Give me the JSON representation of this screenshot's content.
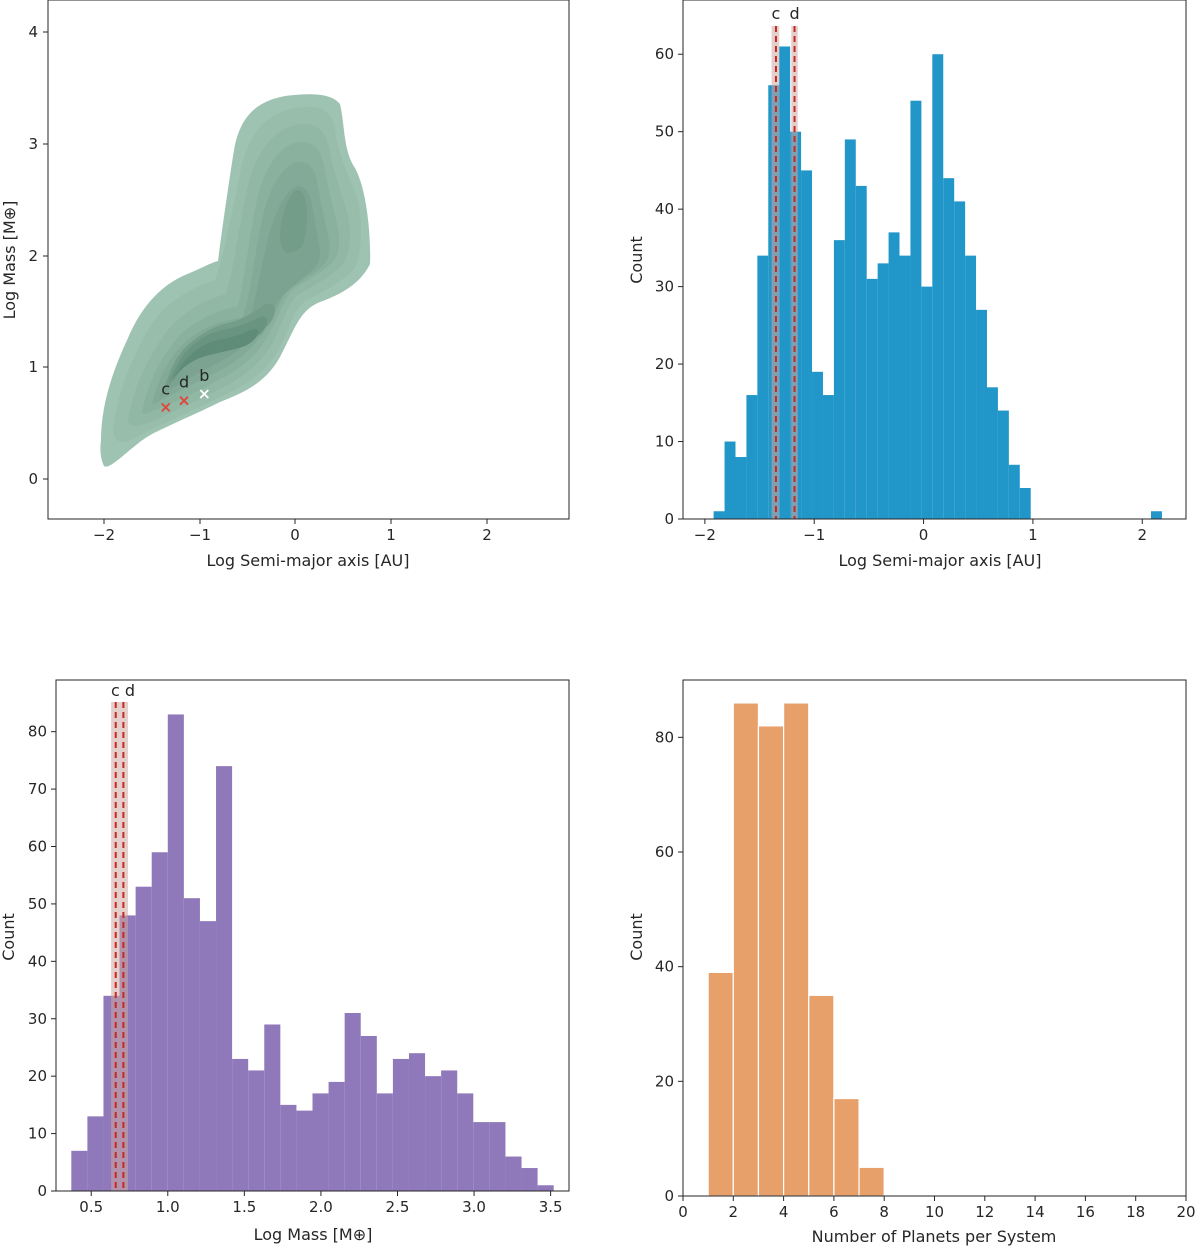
{
  "chart_data": [
    {
      "type": "kde",
      "xlabel": "Log Semi-major axis [AU]",
      "ylabel": "Log Mass [M⊕]",
      "xlim": [
        -2.6,
        2.8
      ],
      "ylim": [
        -0.35,
        4.3
      ],
      "xticks": [
        "−2",
        "−1",
        "0",
        "1",
        "2"
      ],
      "yticks": [
        "0",
        "1",
        "2",
        "3",
        "4"
      ],
      "fill_color": "#9fc3b2",
      "peak_color": "#5f8c79",
      "density_peaks": [
        {
          "x": -0.95,
          "y": 0.95,
          "level": 9
        },
        {
          "x": -0.1,
          "y": 2.6,
          "level": 6
        }
      ],
      "markers": [
        {
          "label": "c",
          "x": -1.38,
          "y": 0.65,
          "color": "#e0443a"
        },
        {
          "label": "d",
          "x": -1.19,
          "y": 0.71,
          "color": "#e0443a"
        },
        {
          "label": "b",
          "x": -0.98,
          "y": 0.77,
          "color": "#ffffff"
        }
      ]
    },
    {
      "type": "bar",
      "xlabel": "Log Semi-major axis [AU]",
      "ylabel": "Count",
      "xlim": [
        -2.2,
        2.4
      ],
      "ylim": [
        0,
        67
      ],
      "xticks": [
        "−2",
        "−1",
        "0",
        "1",
        "2"
      ],
      "yticks": [
        "0",
        "10",
        "20",
        "30",
        "40",
        "50",
        "60"
      ],
      "color": "#2196c8",
      "bin_start": -1.92,
      "bin_width": 0.1,
      "values": [
        1,
        10,
        8,
        16,
        34,
        56,
        61,
        50,
        45,
        19,
        16,
        36,
        49,
        43,
        31,
        33,
        37,
        34,
        54,
        30,
        60,
        44,
        41,
        34,
        27,
        17,
        14,
        7,
        4,
        0,
        0,
        0,
        0,
        0,
        0,
        0,
        0,
        0,
        0,
        0,
        1
      ],
      "vlines": [
        {
          "label": "c",
          "x": -1.35,
          "band": [
            -1.39,
            -1.32
          ]
        },
        {
          "label": "d",
          "x": -1.18,
          "band": [
            -1.21,
            -1.15
          ]
        }
      ]
    },
    {
      "type": "bar",
      "xlabel": "Log Mass [M⊕]",
      "ylabel": "Count",
      "xlim": [
        0.27,
        3.62
      ],
      "ylim": [
        0,
        89
      ],
      "xticks": [
        "0.5",
        "1.0",
        "1.5",
        "2.0",
        "2.5",
        "3.0",
        "3.5"
      ],
      "yticks": [
        "0",
        "10",
        "20",
        "30",
        "40",
        "50",
        "60",
        "70",
        "80"
      ],
      "color": "#9079ba",
      "bin_start": 0.37,
      "bin_width": 0.105,
      "values": [
        7,
        13,
        34,
        48,
        53,
        59,
        83,
        51,
        47,
        74,
        23,
        21,
        29,
        15,
        14,
        17,
        19,
        31,
        27,
        17,
        23,
        24,
        20,
        21,
        17,
        12,
        12,
        6,
        4,
        1
      ],
      "vlines": [
        {
          "label": "c",
          "x": 0.66,
          "band": [
            0.63,
            0.685
          ]
        },
        {
          "label": "d",
          "x": 0.71,
          "band": [
            0.685,
            0.74
          ]
        }
      ],
      "vline_label": "c d"
    },
    {
      "type": "bar",
      "xlabel": "Number of Planets per System",
      "ylabel": "Count",
      "xlim": [
        0,
        20
      ],
      "ylim": [
        0,
        90
      ],
      "xticks": [
        "0",
        "2",
        "4",
        "6",
        "8",
        "10",
        "12",
        "14",
        "16",
        "18",
        "20"
      ],
      "yticks": [
        "0",
        "20",
        "40",
        "60",
        "80"
      ],
      "color": "#e8a06a",
      "bin_start": 1,
      "bin_width": 1,
      "values": [
        39,
        86,
        82,
        86,
        35,
        17,
        5
      ]
    }
  ]
}
